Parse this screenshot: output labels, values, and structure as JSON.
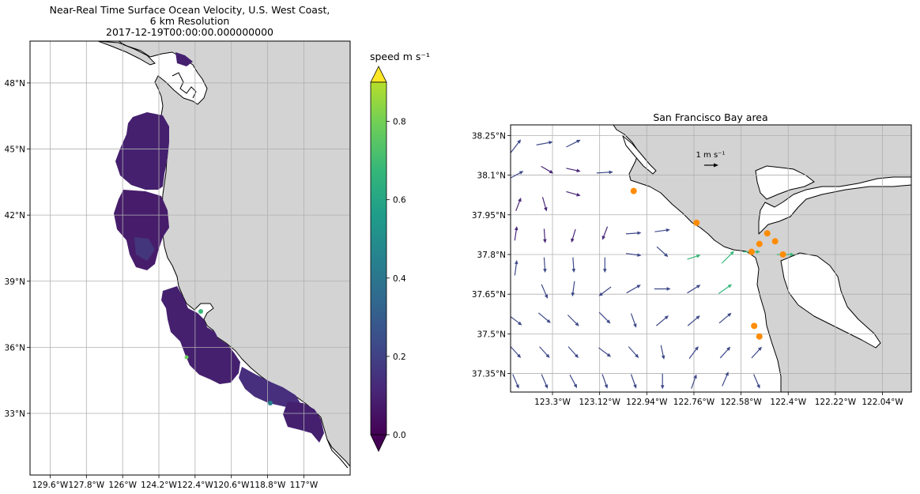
{
  "chart_data": [
    {
      "type": "heatmap",
      "title_lines": [
        "Near-Real Time Surface Ocean Velocity, U.S. West Coast,",
        "6 km Resolution",
        "2017-12-19T00:00:00.000000000"
      ],
      "xlabel": "",
      "ylabel": "",
      "xlim": [
        -130.6,
        -114.7
      ],
      "ylim": [
        30.2,
        49.9
      ],
      "x_ticks": [
        -129.6,
        -127.8,
        -126.0,
        -124.2,
        -122.4,
        -120.6,
        -118.8,
        -117.0
      ],
      "x_tick_labels": [
        "129.6°W",
        "127.8°W",
        "126°W",
        "124.2°W",
        "122.4°W",
        "120.6°W",
        "118.8°W",
        "117°W"
      ],
      "y_ticks": [
        33,
        36,
        39,
        42,
        45,
        48
      ],
      "y_tick_labels": [
        "33°N",
        "36°N",
        "39°N",
        "42°N",
        "45°N",
        "48°N"
      ],
      "grid": true,
      "land_color": "#d3d3d3",
      "colorbar": {
        "label": "speed m s⁻¹",
        "range": [
          0.0,
          0.9
        ],
        "ticks": [
          0.0,
          0.2,
          0.4,
          0.6,
          0.8
        ],
        "tick_labels": [
          "0.0",
          "0.2",
          "0.4",
          "0.6",
          "0.8"
        ],
        "extend": "both",
        "colormap": "viridis"
      }
    },
    {
      "type": "scatter",
      "title": "San Francisco Bay area",
      "xlabel": "",
      "ylabel": "",
      "xlim": [
        -123.46,
        -121.93
      ],
      "ylim": [
        37.28,
        38.29
      ],
      "x_ticks": [
        -123.3,
        -123.12,
        -122.94,
        -122.76,
        -122.58,
        -122.4,
        -122.22,
        -122.04
      ],
      "x_tick_labels": [
        "123.3°W",
        "123.12°W",
        "122.94°W",
        "122.76°W",
        "122.58°W",
        "122.4°W",
        "122.22°W",
        "122.04°W"
      ],
      "y_ticks": [
        37.35,
        37.5,
        37.65,
        37.8,
        37.95,
        38.1,
        38.25
      ],
      "y_tick_labels": [
        "37.35°N",
        "37.5°N",
        "37.65°N",
        "37.8°N",
        "37.95°N",
        "38.1°N",
        "38.25°N"
      ],
      "grid": true,
      "land_color": "#d3d3d3",
      "quiver_key": {
        "label": "1 m s⁻¹",
        "lon": -122.7,
        "lat": 38.16
      },
      "station_color": "#ff8c00",
      "stations": [
        {
          "lon": -122.99,
          "lat": 38.04
        },
        {
          "lon": -122.75,
          "lat": 37.92
        },
        {
          "lon": -122.54,
          "lat": 37.81
        },
        {
          "lon": -122.51,
          "lat": 37.84
        },
        {
          "lon": -122.48,
          "lat": 37.88
        },
        {
          "lon": -122.45,
          "lat": 37.85
        },
        {
          "lon": -122.42,
          "lat": 37.8
        },
        {
          "lon": -122.53,
          "lat": 37.53
        },
        {
          "lon": -122.51,
          "lat": 37.49
        }
      ],
      "vectors": [
        {
          "lon": -123.44,
          "lat": 38.21,
          "u": 0.1,
          "v": 0.13,
          "speed": 0.18
        },
        {
          "lon": -123.33,
          "lat": 38.22,
          "u": 0.16,
          "v": 0.03,
          "speed": 0.16
        },
        {
          "lon": -123.22,
          "lat": 38.22,
          "u": 0.14,
          "v": 0.07,
          "speed": 0.16
        },
        {
          "lon": -123.44,
          "lat": 38.1,
          "u": 0.15,
          "v": 0.08,
          "speed": 0.17
        },
        {
          "lon": -123.32,
          "lat": 38.12,
          "u": 0.12,
          "v": -0.07,
          "speed": 0.14
        },
        {
          "lon": -123.22,
          "lat": 38.12,
          "u": 0.14,
          "v": -0.03,
          "speed": 0.14
        },
        {
          "lon": -123.1,
          "lat": 38.11,
          "u": 0.16,
          "v": 0.01,
          "speed": 0.16
        },
        {
          "lon": -123.43,
          "lat": 37.99,
          "u": 0.05,
          "v": 0.13,
          "speed": 0.14
        },
        {
          "lon": -123.33,
          "lat": 37.99,
          "u": 0.04,
          "v": -0.14,
          "speed": 0.14
        },
        {
          "lon": -123.22,
          "lat": 38.03,
          "u": 0.14,
          "v": -0.04,
          "speed": 0.14
        },
        {
          "lon": -123.44,
          "lat": 37.88,
          "u": 0.02,
          "v": 0.14,
          "speed": 0.14
        },
        {
          "lon": -123.33,
          "lat": 37.87,
          "u": 0.01,
          "v": -0.14,
          "speed": 0.14
        },
        {
          "lon": -123.22,
          "lat": 37.87,
          "u": -0.04,
          "v": -0.13,
          "speed": 0.14
        },
        {
          "lon": -123.1,
          "lat": 37.88,
          "u": -0.05,
          "v": -0.13,
          "speed": 0.14
        },
        {
          "lon": -122.99,
          "lat": 37.88,
          "u": 0.15,
          "v": 0.01,
          "speed": 0.15
        },
        {
          "lon": -122.88,
          "lat": 37.89,
          "u": 0.15,
          "v": 0.02,
          "speed": 0.15
        },
        {
          "lon": -123.44,
          "lat": 37.75,
          "u": 0.02,
          "v": 0.15,
          "speed": 0.15
        },
        {
          "lon": -123.33,
          "lat": 37.76,
          "u": 0.01,
          "v": -0.15,
          "speed": 0.15
        },
        {
          "lon": -123.22,
          "lat": 37.76,
          "u": 0.01,
          "v": -0.15,
          "speed": 0.15
        },
        {
          "lon": -123.1,
          "lat": 37.76,
          "u": 0.0,
          "v": -0.15,
          "speed": 0.15
        },
        {
          "lon": -122.99,
          "lat": 37.8,
          "u": 0.15,
          "v": -0.02,
          "speed": 0.15
        },
        {
          "lon": -122.88,
          "lat": 37.81,
          "u": 0.11,
          "v": -0.1,
          "speed": 0.15
        },
        {
          "lon": -122.76,
          "lat": 37.79,
          "u": 0.13,
          "v": 0.04,
          "speed": 0.55
        },
        {
          "lon": -122.63,
          "lat": 37.79,
          "u": 0.12,
          "v": 0.12,
          "speed": 0.62
        },
        {
          "lon": -122.54,
          "lat": 37.81,
          "u": 0.17,
          "v": 0.0,
          "speed": 0.6
        },
        {
          "lon": -122.41,
          "lat": 37.8,
          "u": 0.17,
          "v": 0.0,
          "speed": 0.58
        },
        {
          "lon": -123.33,
          "lat": 37.66,
          "u": 0.06,
          "v": -0.14,
          "speed": 0.15
        },
        {
          "lon": -123.22,
          "lat": 37.67,
          "u": -0.02,
          "v": -0.15,
          "speed": 0.15
        },
        {
          "lon": -123.1,
          "lat": 37.66,
          "u": -0.12,
          "v": -0.09,
          "speed": 0.15
        },
        {
          "lon": -122.99,
          "lat": 37.67,
          "u": 0.14,
          "v": 0.08,
          "speed": 0.16
        },
        {
          "lon": -122.88,
          "lat": 37.67,
          "u": 0.16,
          "v": 0.0,
          "speed": 0.16
        },
        {
          "lon": -122.76,
          "lat": 37.67,
          "u": 0.13,
          "v": 0.08,
          "speed": 0.16
        },
        {
          "lon": -122.64,
          "lat": 37.67,
          "u": 0.13,
          "v": 0.09,
          "speed": 0.56
        },
        {
          "lon": -123.44,
          "lat": 37.55,
          "u": 0.12,
          "v": -0.09,
          "speed": 0.15
        },
        {
          "lon": -123.33,
          "lat": 37.56,
          "u": 0.12,
          "v": -0.1,
          "speed": 0.15
        },
        {
          "lon": -123.22,
          "lat": 37.55,
          "u": 0.11,
          "v": -0.11,
          "speed": 0.15
        },
        {
          "lon": -123.1,
          "lat": 37.56,
          "u": 0.11,
          "v": -0.11,
          "speed": 0.15
        },
        {
          "lon": -122.99,
          "lat": 37.55,
          "u": 0.05,
          "v": -0.14,
          "speed": 0.15
        },
        {
          "lon": -122.88,
          "lat": 37.55,
          "u": 0.12,
          "v": 0.1,
          "speed": 0.15
        },
        {
          "lon": -122.76,
          "lat": 37.55,
          "u": 0.12,
          "v": 0.1,
          "speed": 0.15
        },
        {
          "lon": -122.64,
          "lat": 37.56,
          "u": 0.12,
          "v": 0.1,
          "speed": 0.15
        },
        {
          "lon": -123.44,
          "lat": 37.43,
          "u": 0.1,
          "v": -0.11,
          "speed": 0.15
        },
        {
          "lon": -123.33,
          "lat": 37.43,
          "u": 0.1,
          "v": -0.11,
          "speed": 0.15
        },
        {
          "lon": -123.22,
          "lat": 37.43,
          "u": 0.1,
          "v": -0.11,
          "speed": 0.15
        },
        {
          "lon": -123.1,
          "lat": 37.43,
          "u": 0.12,
          "v": -0.09,
          "speed": 0.15
        },
        {
          "lon": -122.99,
          "lat": 37.43,
          "u": 0.1,
          "v": -0.11,
          "speed": 0.15
        },
        {
          "lon": -122.88,
          "lat": 37.43,
          "u": 0.03,
          "v": -0.14,
          "speed": 0.15
        },
        {
          "lon": -122.76,
          "lat": 37.43,
          "u": 0.09,
          "v": 0.12,
          "speed": 0.15
        },
        {
          "lon": -122.64,
          "lat": 37.43,
          "u": 0.1,
          "v": 0.11,
          "speed": 0.15
        },
        {
          "lon": -122.52,
          "lat": 37.43,
          "u": 0.1,
          "v": 0.11,
          "speed": 0.15
        },
        {
          "lon": -123.44,
          "lat": 37.32,
          "u": 0.06,
          "v": -0.14,
          "speed": 0.15
        },
        {
          "lon": -123.33,
          "lat": 37.32,
          "u": 0.06,
          "v": -0.14,
          "speed": 0.15
        },
        {
          "lon": -123.22,
          "lat": 37.32,
          "u": 0.07,
          "v": -0.13,
          "speed": 0.15
        },
        {
          "lon": -123.1,
          "lat": 37.32,
          "u": 0.05,
          "v": -0.14,
          "speed": 0.15
        },
        {
          "lon": -122.99,
          "lat": 37.32,
          "u": 0.05,
          "v": -0.14,
          "speed": 0.15
        },
        {
          "lon": -122.88,
          "lat": 37.32,
          "u": 0.0,
          "v": -0.15,
          "speed": 0.15
        },
        {
          "lon": -122.76,
          "lat": 37.32,
          "u": 0.05,
          "v": 0.14,
          "speed": 0.15
        },
        {
          "lon": -122.64,
          "lat": 37.33,
          "u": 0.06,
          "v": 0.14,
          "speed": 0.15
        },
        {
          "lon": -122.52,
          "lat": 37.32,
          "u": 0.06,
          "v": -0.14,
          "speed": 0.15
        }
      ]
    }
  ]
}
